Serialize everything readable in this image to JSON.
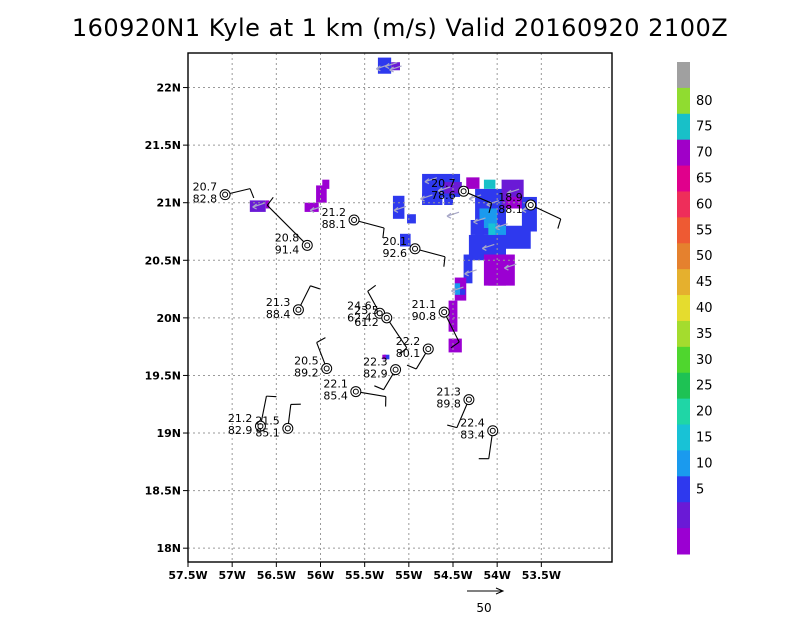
{
  "title": "160920N1 Kyle at 1 km (m/s) Valid 20160920 2100Z",
  "chart_data": {
    "type": "map",
    "xlim": [
      -57.5,
      -52.7
    ],
    "ylim": [
      17.88,
      22.3
    ],
    "x_ticks": [
      {
        "value": -57.5,
        "label": "57.5W"
      },
      {
        "value": -57,
        "label": "57W"
      },
      {
        "value": -56.5,
        "label": "56.5W"
      },
      {
        "value": -56,
        "label": "56W"
      },
      {
        "value": -55.5,
        "label": "55.5W"
      },
      {
        "value": -55,
        "label": "55W"
      },
      {
        "value": -54.5,
        "label": "54.5W"
      },
      {
        "value": -54,
        "label": "54W"
      },
      {
        "value": -53.5,
        "label": "53.5W"
      }
    ],
    "y_ticks": [
      {
        "value": 18,
        "label": "18N"
      },
      {
        "value": 18.5,
        "label": "18.5N"
      },
      {
        "value": 19,
        "label": "19N"
      },
      {
        "value": 19.5,
        "label": "19.5N"
      },
      {
        "value": 20,
        "label": "20N"
      },
      {
        "value": 20.5,
        "label": "20.5N"
      },
      {
        "value": 21,
        "label": "21N"
      },
      {
        "value": 21.5,
        "label": "21.5N"
      },
      {
        "value": 22,
        "label": "22N"
      }
    ],
    "grid": true,
    "colorbar": {
      "labels": [
        "5",
        "10",
        "15",
        "20",
        "25",
        "30",
        "35",
        "40",
        "45",
        "50",
        "55",
        "60",
        "65",
        "70",
        "75",
        "80"
      ],
      "colors": [
        "#9b00d2",
        "#6a1ad6",
        "#2e39ee",
        "#1a9aee",
        "#18c2d6",
        "#1fd6a6",
        "#1ec254",
        "#4fd62e",
        "#a4dc2e",
        "#e5dc2e",
        "#e5b02e",
        "#e5812e",
        "#ee5a33",
        "#ee2e5a",
        "#e0008c",
        "#a000c8",
        "#18c0c8",
        "#90dc30",
        "#a0a0a0"
      ]
    },
    "stations": [
      {
        "lon": -57.08,
        "lat": 21.07,
        "t": "20.7",
        "w": "82.8"
      },
      {
        "lon": -55.62,
        "lat": 20.85,
        "t": "21.2",
        "w": "88.1"
      },
      {
        "lon": -56.15,
        "lat": 20.63,
        "t": "20.8",
        "w": "91.4"
      },
      {
        "lon": -54.93,
        "lat": 20.6,
        "t": "20.1",
        "w": "92.6"
      },
      {
        "lon": -54.38,
        "lat": 21.1,
        "t": "20.7",
        "w": "78.6"
      },
      {
        "lon": -53.62,
        "lat": 20.98,
        "t": "18.9",
        "w": "88.1"
      },
      {
        "lon": -56.25,
        "lat": 20.07,
        "t": "21.3",
        "w": "88.4"
      },
      {
        "lon": -55.33,
        "lat": 20.04,
        "t": "24.6",
        "w": "62.4"
      },
      {
        "lon": -55.25,
        "lat": 20.0,
        "t": "23.5",
        "w": "61.2"
      },
      {
        "lon": -54.6,
        "lat": 20.05,
        "t": "21.1",
        "w": "90.8"
      },
      {
        "lon": -54.78,
        "lat": 19.73,
        "t": "22.2",
        "w": "80.1"
      },
      {
        "lon": -55.93,
        "lat": 19.56,
        "t": "20.5",
        "w": "89.2"
      },
      {
        "lon": -55.15,
        "lat": 19.55,
        "t": "22.3",
        "w": "82.9"
      },
      {
        "lon": -55.6,
        "lat": 19.36,
        "t": "22.1",
        "w": "85.4"
      },
      {
        "lon": -54.32,
        "lat": 19.29,
        "t": "21.3",
        "w": "89.8"
      },
      {
        "lon": -56.68,
        "lat": 19.06,
        "t": "21.2",
        "w": "82.9"
      },
      {
        "lon": -56.37,
        "lat": 19.04,
        "t": "21.5",
        "w": "85.1"
      },
      {
        "lon": -54.05,
        "lat": 19.02,
        "t": "22.4",
        "w": "83.4"
      }
    ],
    "reference_vector": {
      "label": "50"
    }
  }
}
